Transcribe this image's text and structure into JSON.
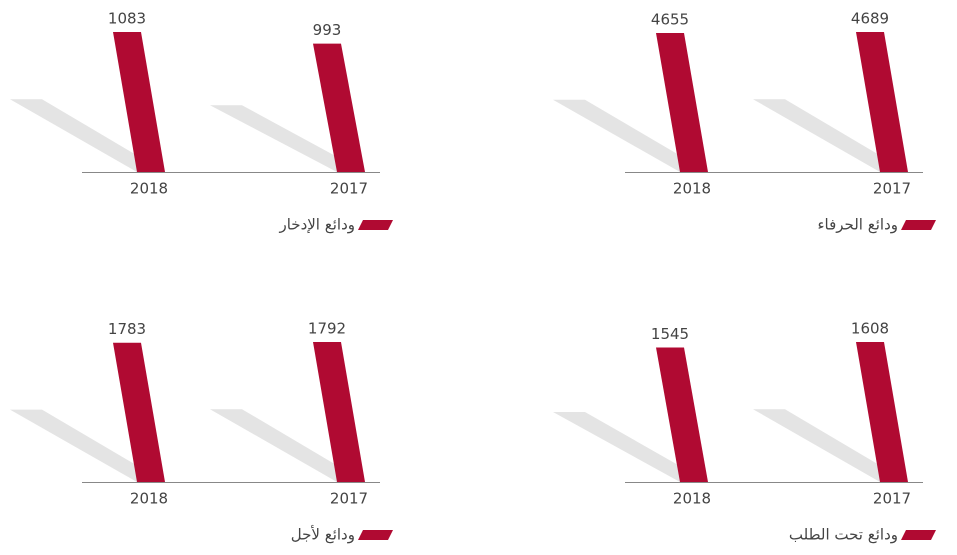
{
  "chart_data": [
    {
      "type": "bar",
      "categories": [
        "2018",
        "2017"
      ],
      "series": [
        {
          "name": "ودائع الحرفاء",
          "color": "#b00a32",
          "values": [
            4655,
            4689
          ]
        }
      ]
    },
    {
      "type": "bar",
      "categories": [
        "2018",
        "2017"
      ],
      "series": [
        {
          "name": "ودائع الإدخار",
          "color": "#b00a32",
          "values": [
            1083,
            993
          ]
        }
      ]
    },
    {
      "type": "bar",
      "categories": [
        "2018",
        "2017"
      ],
      "series": [
        {
          "name": "ودائع تحت الطلب",
          "color": "#b00a32",
          "values": [
            1545,
            1608
          ]
        }
      ]
    },
    {
      "type": "bar",
      "categories": [
        "2018",
        "2017"
      ],
      "series": [
        {
          "name": "ودائع لأجل",
          "color": "#b00a32",
          "values": [
            1783,
            1792
          ]
        }
      ]
    }
  ]
}
